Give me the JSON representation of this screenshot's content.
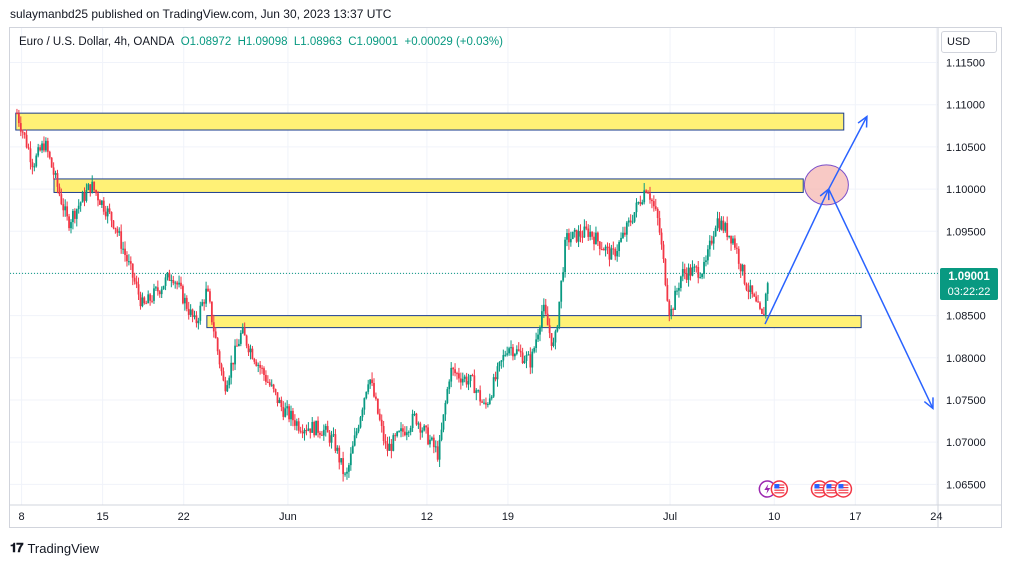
{
  "header": {
    "caption": "sulaymanbd25 published on TradingView.com, Jun 30, 2023 13:37 UTC"
  },
  "legend": {
    "symbol": "Euro / U.S. Dollar, 4h, OANDA",
    "open": "O1.08972",
    "high": "H1.09098",
    "low": "L1.08963",
    "close": "C1.09001",
    "change": "+0.00029 (+0.03%)"
  },
  "currency_button": "USD",
  "last_price": {
    "price": "1.09001",
    "countdown": "03:22:22"
  },
  "footer": {
    "brand": "TradingView"
  },
  "colors": {
    "up": "#089981",
    "down": "#f23645",
    "zone_fill": "#fff176",
    "zone_border": "#1a3c8f",
    "arrow": "#2962ff",
    "highlight": "#f5b7b1"
  },
  "chart_data": {
    "type": "candlestick",
    "title": "Euro / U.S. Dollar, 4h, OANDA",
    "ylim": [
      1.0635,
      1.1185
    ],
    "y_ticks": [
      "1.11500",
      "1.11000",
      "1.10500",
      "1.10000",
      "1.09500",
      "1.09000",
      "1.08500",
      "1.08000",
      "1.07500",
      "1.07000",
      "1.06500"
    ],
    "x_ticks": [
      "8",
      "15",
      "22",
      "Jun",
      "12",
      "19",
      "Jul",
      "10",
      "17",
      "24"
    ],
    "x_range_days": [
      "May 7",
      "Jul 25"
    ],
    "path_waypoints": [
      {
        "day": 0.6,
        "price": 1.109
      },
      {
        "day": 2.0,
        "price": 1.103
      },
      {
        "day": 3.0,
        "price": 1.1055
      },
      {
        "day": 5.0,
        "price": 1.096
      },
      {
        "day": 7.0,
        "price": 1.1005
      },
      {
        "day": 9.0,
        "price": 1.096
      },
      {
        "day": 11.5,
        "price": 1.086
      },
      {
        "day": 14.0,
        "price": 1.09
      },
      {
        "day": 16.0,
        "price": 1.084
      },
      {
        "day": 17.0,
        "price": 1.088
      },
      {
        "day": 18.5,
        "price": 1.0765
      },
      {
        "day": 20.0,
        "price": 1.083
      },
      {
        "day": 23.5,
        "price": 1.074
      },
      {
        "day": 25.0,
        "price": 1.072
      },
      {
        "day": 27.0,
        "price": 1.0715
      },
      {
        "day": 28.0,
        "price": 1.07
      },
      {
        "day": 29.0,
        "price": 1.0655
      },
      {
        "day": 31.0,
        "price": 1.078
      },
      {
        "day": 32.5,
        "price": 1.069
      },
      {
        "day": 35.0,
        "price": 1.073
      },
      {
        "day": 37.0,
        "price": 1.0685
      },
      {
        "day": 38.0,
        "price": 1.0785
      },
      {
        "day": 40.0,
        "price": 1.077
      },
      {
        "day": 41.0,
        "price": 1.074
      },
      {
        "day": 43.0,
        "price": 1.0815
      },
      {
        "day": 45.0,
        "price": 1.0795
      },
      {
        "day": 46.0,
        "price": 1.086
      },
      {
        "day": 47.0,
        "price": 1.081
      },
      {
        "day": 48.0,
        "price": 1.094
      },
      {
        "day": 50.0,
        "price": 1.095
      },
      {
        "day": 52.0,
        "price": 1.092
      },
      {
        "day": 53.0,
        "price": 1.0945
      },
      {
        "day": 55.0,
        "price": 1.1005
      },
      {
        "day": 56.0,
        "price": 1.096
      },
      {
        "day": 57.0,
        "price": 1.085
      },
      {
        "day": 58.0,
        "price": 1.09
      },
      {
        "day": 60.0,
        "price": 1.0905
      },
      {
        "day": 61.0,
        "price": 1.0965
      },
      {
        "day": 62.5,
        "price": 1.094
      },
      {
        "day": 63.5,
        "price": 1.089
      },
      {
        "day": 65.0,
        "price": 1.0845
      },
      {
        "day": 65.5,
        "price": 1.09
      }
    ],
    "zones": [
      {
        "day_start": 0.5,
        "day_end": 72.0,
        "top": 1.109,
        "bottom": 1.107
      },
      {
        "day_start": 3.8,
        "day_end": 68.5,
        "top": 1.1012,
        "bottom": 1.0996
      },
      {
        "day_start": 17.0,
        "day_end": 73.5,
        "top": 1.085,
        "bottom": 1.0836
      }
    ],
    "projection": [
      {
        "day": 65.2,
        "price": 1.084
      },
      {
        "day": 70.7,
        "price": 1.1
      },
      {
        "day": 74.0,
        "price": 1.1086
      }
    ],
    "projection_down": [
      {
        "day": 70.7,
        "price": 1.1
      },
      {
        "day": 79.7,
        "price": 1.074
      }
    ],
    "highlight": {
      "day": 70.5,
      "price": 1.1005
    },
    "last_price": 1.09001,
    "events": [
      {
        "day": 65.4,
        "icons": [
          "bolt",
          "us-flag"
        ]
      },
      {
        "day": 69.9,
        "icons": [
          "us-flag",
          "us-flag",
          "us-flag"
        ]
      }
    ]
  }
}
